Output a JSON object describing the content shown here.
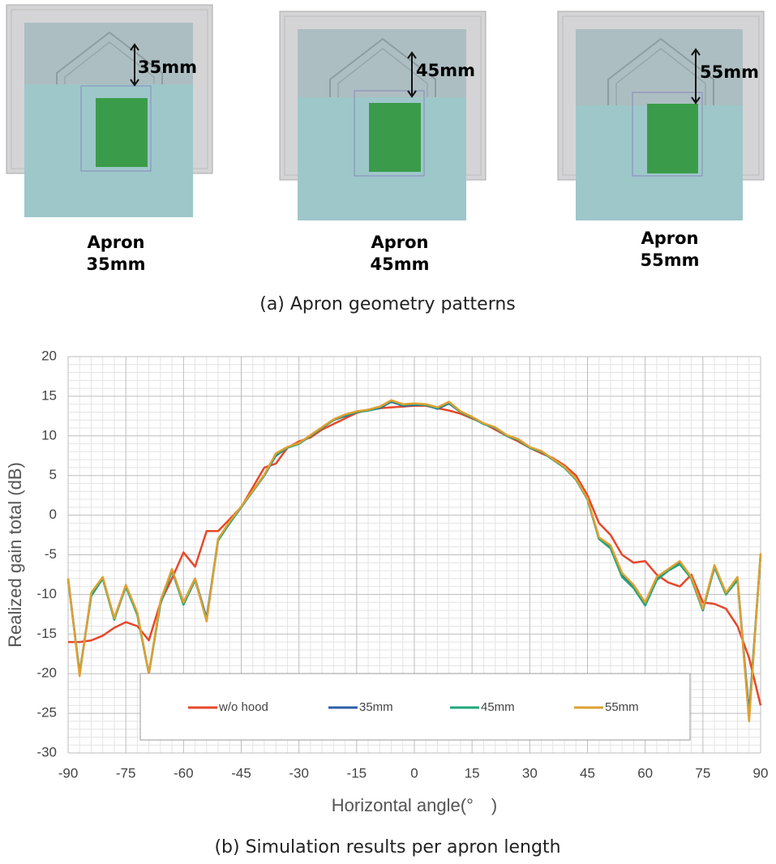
{
  "panels": [
    {
      "dimension": "35mm",
      "label_line1": "Apron",
      "label_line2": "35mm"
    },
    {
      "dimension": "45mm",
      "label_line1": "Apron",
      "label_line2": "45mm"
    },
    {
      "dimension": "55mm",
      "label_line1": "Apron",
      "label_line2": "55mm"
    }
  ],
  "caption_a": "(a) Apron geometry patterns",
  "chart_data": {
    "type": "line",
    "xlabel": "Horizontal angle(°　)",
    "ylabel": "Realized gain total (dB)",
    "x": [
      -90,
      -87,
      -84,
      -81,
      -78,
      -75,
      -72,
      -69,
      -66,
      -63,
      -60,
      -57,
      -54,
      -51,
      -48,
      -45,
      -42,
      -39,
      -36,
      -33,
      -30,
      -27,
      -24,
      -21,
      -18,
      -15,
      -12,
      -9,
      -6,
      -3,
      0,
      3,
      6,
      9,
      12,
      15,
      18,
      21,
      24,
      27,
      30,
      33,
      36,
      39,
      42,
      45,
      48,
      51,
      54,
      57,
      60,
      63,
      66,
      69,
      72,
      75,
      78,
      81,
      84,
      87,
      90
    ],
    "series": [
      {
        "name": "w/o hood",
        "color": "#e8472a",
        "values": [
          -16,
          -16,
          -15.8,
          -15.2,
          -14.2,
          -13.5,
          -14,
          -15.8,
          -11,
          -8,
          -4.7,
          -6.5,
          -2,
          -2,
          -0.5,
          1,
          3.5,
          6,
          6.5,
          8.5,
          9.3,
          9.8,
          10.8,
          11.5,
          12.2,
          12.9,
          13.3,
          13.5,
          13.6,
          13.7,
          13.8,
          13.8,
          13.5,
          13.2,
          12.8,
          12.2,
          11.6,
          10.8,
          10,
          9.3,
          8.5,
          7.8,
          7.2,
          6.3,
          5,
          2.5,
          -1,
          -2.5,
          -5,
          -6,
          -5.8,
          -7.5,
          -8.5,
          -9,
          -7.5,
          -11,
          -11.2,
          -11.8,
          -14,
          -18,
          -24
        ]
      },
      {
        "name": "35mm",
        "color": "#2e5fa8",
        "values": [
          -8,
          -20,
          -10,
          -8,
          -13,
          -9,
          -12.5,
          -20,
          -11,
          -7,
          -11,
          -8,
          -13,
          -3,
          -1,
          1,
          3,
          5,
          7.5,
          8.5,
          9,
          10,
          11,
          12,
          12.5,
          13,
          13.2,
          13.5,
          14.3,
          13.8,
          13.9,
          13.9,
          13.4,
          14.1,
          13,
          12.3,
          11.5,
          11,
          10,
          9.5,
          8.5,
          8,
          7,
          6,
          4.5,
          2,
          -3,
          -4,
          -7.5,
          -9,
          -11.2,
          -8,
          -7,
          -6,
          -8,
          -12,
          -6.5,
          -10,
          -8,
          -25,
          -5
        ]
      },
      {
        "name": "45mm",
        "color": "#1fa67a",
        "values": [
          -8.2,
          -20,
          -10.2,
          -8,
          -13.2,
          -9,
          -12.6,
          -20,
          -11.2,
          -7,
          -11.3,
          -8.2,
          -13.2,
          -3.2,
          -1,
          1,
          3,
          5,
          7.6,
          8.5,
          9,
          10,
          11,
          12,
          12.6,
          13,
          13.2,
          13.6,
          14.4,
          13.9,
          14,
          13.9,
          13.5,
          14.2,
          13,
          12.3,
          11.5,
          11,
          10,
          9.5,
          8.5,
          8,
          7,
          6,
          4.5,
          2,
          -3,
          -4.2,
          -7.8,
          -9.2,
          -11.4,
          -8.2,
          -7,
          -6.2,
          -8,
          -12,
          -6.6,
          -10,
          -8.2,
          -25.5,
          -5
        ]
      },
      {
        "name": "55mm",
        "color": "#e0a030",
        "values": [
          -8,
          -20.3,
          -9.8,
          -7.8,
          -13,
          -8.8,
          -12.3,
          -20,
          -10.8,
          -6.8,
          -11,
          -8,
          -13.4,
          -3,
          -0.8,
          1.1,
          3.1,
          5.1,
          7.8,
          8.6,
          9.1,
          10.1,
          11.1,
          12.1,
          12.7,
          13.1,
          13.3,
          13.7,
          14.5,
          14,
          14.1,
          14,
          13.6,
          14.3,
          13.1,
          12.4,
          11.6,
          11.1,
          10.1,
          9.6,
          8.6,
          8.1,
          7.1,
          6.1,
          4.6,
          2.1,
          -2.8,
          -3.8,
          -7.3,
          -8.8,
          -11,
          -7.8,
          -6.8,
          -5.8,
          -7.8,
          -11.8,
          -6.3,
          -9.8,
          -7.8,
          -26,
          -4.8
        ]
      }
    ],
    "xlim": [
      -90,
      90
    ],
    "xticks": [
      -90,
      -75,
      -60,
      -45,
      -30,
      -15,
      0,
      15,
      30,
      45,
      60,
      75,
      90
    ],
    "ylim": [
      -30,
      20
    ],
    "yticks": [
      -30,
      -25,
      -20,
      -15,
      -10,
      -5,
      0,
      5,
      10,
      15,
      20
    ],
    "grid": true,
    "legend": "lower center"
  },
  "caption_b": "(b) Simulation results per apron length"
}
